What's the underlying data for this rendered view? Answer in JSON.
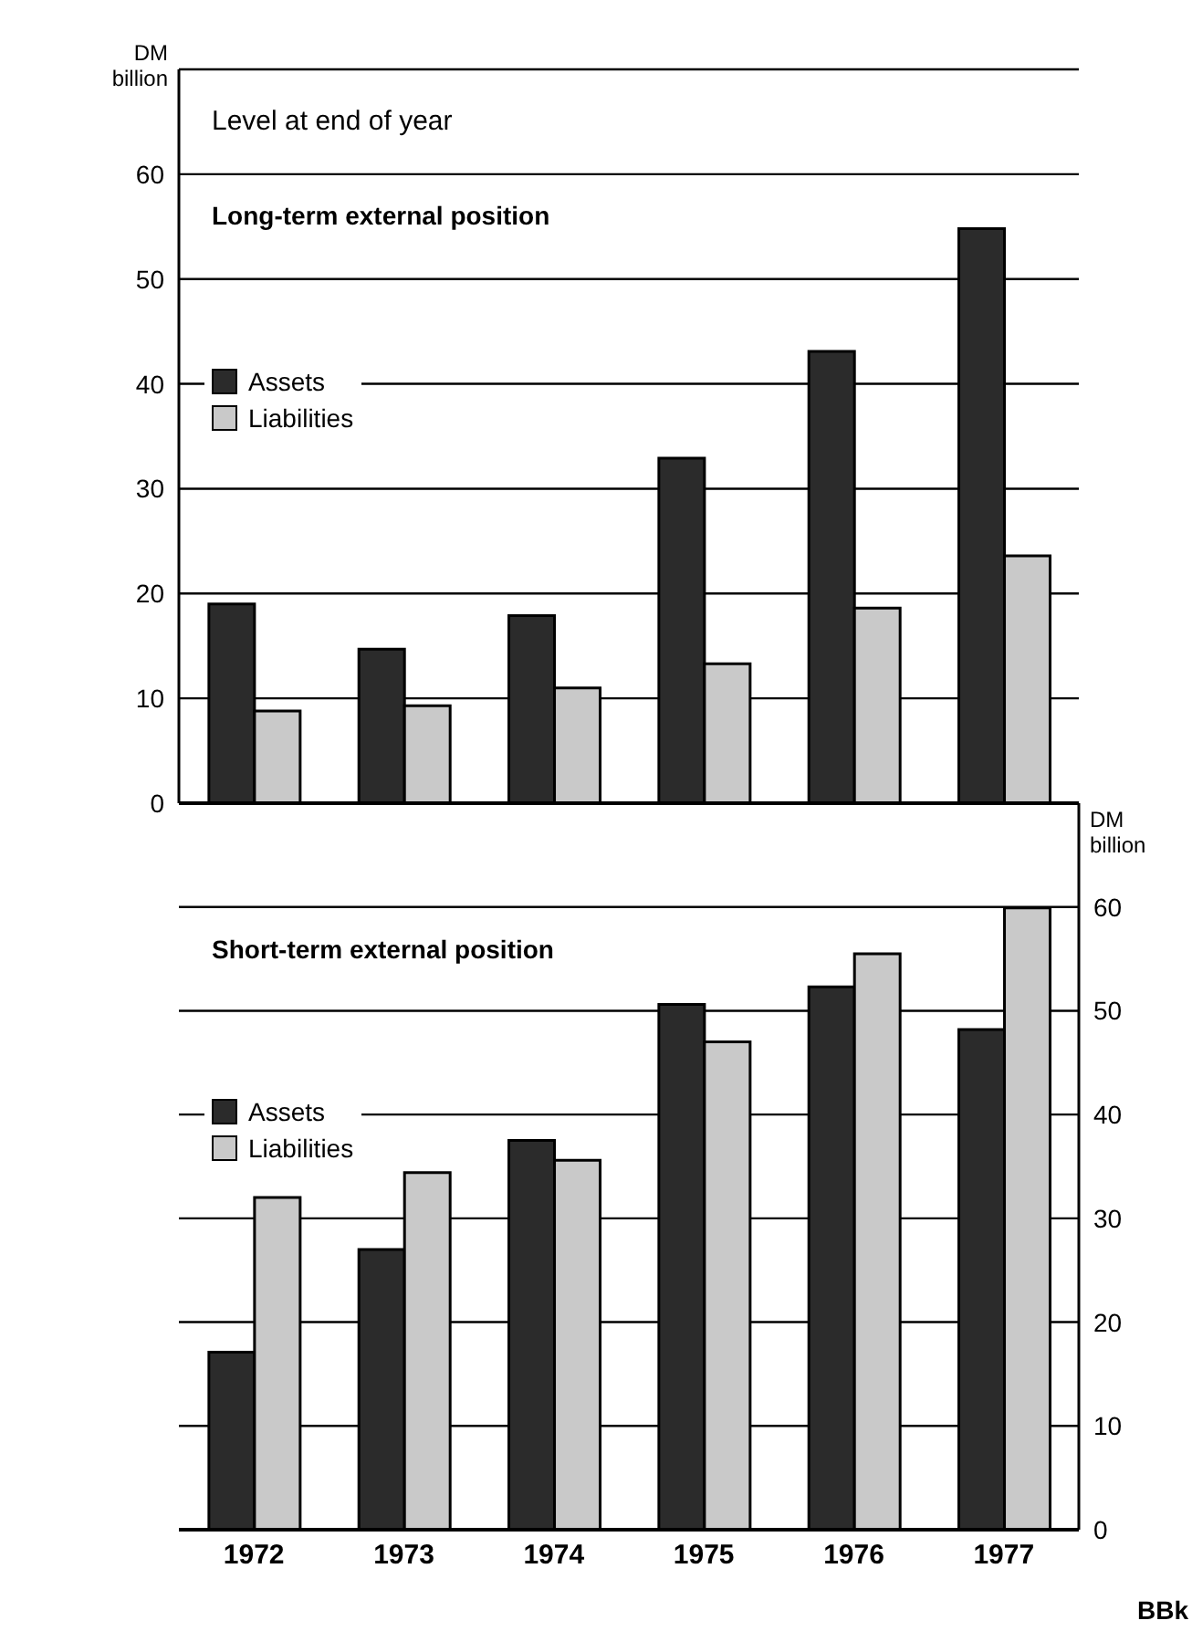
{
  "chart_data": [
    {
      "type": "bar",
      "title": "Long-term external position",
      "ylabel": "DM billion",
      "annotations": [
        "Level at end of year"
      ],
      "categories": [
        "1972",
        "1973",
        "1974",
        "1975",
        "1976",
        "1977"
      ],
      "series": [
        {
          "name": "Assets",
          "color": "#2b2b2b",
          "values": [
            19.0,
            14.7,
            17.9,
            32.9,
            43.1,
            54.8
          ]
        },
        {
          "name": "Liabilities",
          "color": "#c9c9c9",
          "values": [
            8.8,
            9.3,
            11.0,
            13.3,
            18.6,
            23.6
          ]
        }
      ],
      "ylim": [
        0,
        70
      ],
      "yticks": [
        0,
        10,
        20,
        30,
        40,
        50,
        60
      ],
      "grid": "y",
      "legend": "top left",
      "tick_labels": "y"
    },
    {
      "type": "bar",
      "title": "Short-term external position",
      "y2label": "DM billion",
      "annotations": [
        "BBk"
      ],
      "categories": [
        "1972",
        "1973",
        "1974",
        "1975",
        "1976",
        "1977"
      ],
      "series": [
        {
          "name": "Assets",
          "color": "#2b2b2b",
          "axis": "y2",
          "values": [
            17.1,
            27.0,
            37.5,
            50.6,
            52.3,
            48.2
          ]
        },
        {
          "name": "Liabilities",
          "color": "#c9c9c9",
          "axis": "y2",
          "values": [
            32.0,
            34.4,
            35.6,
            47.0,
            55.5,
            59.9
          ]
        }
      ],
      "y2lim": [
        0,
        70
      ],
      "y2ticks": [
        0,
        10,
        20,
        30,
        40,
        50,
        60
      ],
      "grid": "y",
      "legend": "top left"
    }
  ]
}
